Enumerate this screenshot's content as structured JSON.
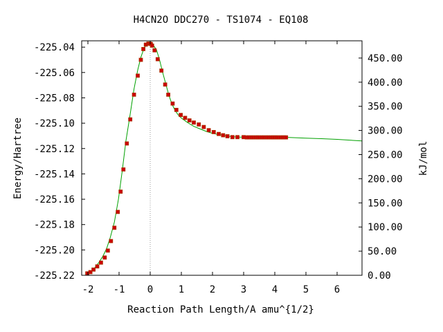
{
  "chart_data": {
    "type": "scatter",
    "title": "H4CN2O   DDC270 - TS1074 - EQ108",
    "xlabel": "Reaction Path Length/A amu^{1/2}",
    "ylabel": "Energy/Hartree",
    "y2label": "kJ/mol",
    "xlim": [
      -2.2,
      6.8
    ],
    "ylim": [
      -225.22,
      -225.035
    ],
    "y2lim": [
      0,
      485.7
    ],
    "xticks": [
      -2,
      -1,
      0,
      1,
      2,
      3,
      4,
      5,
      6
    ],
    "xtick_labels": [
      "-2",
      "-1",
      "0",
      "1",
      "2",
      "3",
      "4",
      "5",
      "6"
    ],
    "yticks": [
      -225.22,
      -225.2,
      -225.18,
      -225.16,
      -225.14,
      -225.12,
      -225.1,
      -225.08,
      -225.06,
      -225.04
    ],
    "ytick_labels": [
      "-225.22",
      "-225.20",
      "-225.18",
      "-225.16",
      "-225.14",
      "-225.12",
      "-225.10",
      "-225.08",
      "-225.06",
      "-225.04"
    ],
    "y2ticks": [
      0,
      50,
      100,
      150,
      200,
      250,
      300,
      350,
      400,
      450
    ],
    "y2tick_labels": [
      "0.00",
      "50.00",
      "100.00",
      "150.00",
      "200.00",
      "250.00",
      "300.00",
      "350.00",
      "400.00",
      "450.00"
    ],
    "ts_marker_x": 0,
    "grid": false,
    "colors": {
      "curve": "#00a000",
      "point_fill": "#cc0000",
      "point_edge": "#aa3300",
      "ts_line": "#999999",
      "frame": "#000000"
    },
    "series": [
      {
        "type": "line",
        "x": [
          -2.02,
          -1.9,
          -1.78,
          -1.65,
          -1.52,
          -1.4,
          -1.28,
          -1.15,
          -1.02,
          -0.9,
          -0.78,
          -0.65,
          -0.52,
          -0.4,
          -0.3,
          -0.2,
          -0.1,
          0.0,
          0.1,
          0.2,
          0.3,
          0.4,
          0.5,
          0.6,
          0.7,
          0.8,
          0.9,
          1.0,
          1.2,
          1.4,
          1.6,
          1.8,
          2.0,
          2.2,
          2.4,
          2.6,
          2.8,
          3.0,
          3.5,
          4.0,
          4.4,
          5.0,
          5.5,
          6.0,
          6.8
        ],
        "y": [
          -225.219,
          -225.2175,
          -225.214,
          -225.21,
          -225.205,
          -225.199,
          -225.19,
          -225.178,
          -225.16,
          -225.138,
          -225.114,
          -225.094,
          -225.073,
          -225.058,
          -225.048,
          -225.041,
          -225.0372,
          -225.037,
          -225.0385,
          -225.042,
          -225.05,
          -225.06,
          -225.069,
          -225.078,
          -225.085,
          -225.09,
          -225.0935,
          -225.096,
          -225.0995,
          -225.1025,
          -225.1045,
          -225.1065,
          -225.108,
          -225.109,
          -225.1098,
          -225.1105,
          -225.111,
          -225.111,
          -225.1112,
          -225.1112,
          -225.1112,
          -225.1118,
          -225.1122,
          -225.1128,
          -225.114
        ]
      },
      {
        "type": "scatter",
        "x": [
          -2.02,
          -1.92,
          -1.82,
          -1.7,
          -1.58,
          -1.46,
          -1.36,
          -1.26,
          -1.15,
          -1.04,
          -0.95,
          -0.86,
          -0.75,
          -0.64,
          -0.52,
          -0.4,
          -0.3,
          -0.22,
          -0.14,
          -0.06,
          -0.02,
          0.02,
          0.06,
          0.14,
          0.24,
          0.36,
          0.48,
          0.58,
          0.72,
          0.84,
          0.98,
          1.12,
          1.26,
          1.4,
          1.56,
          1.72,
          1.88,
          2.04,
          2.2,
          2.34,
          2.48,
          2.64,
          2.8,
          3.0,
          3.1,
          3.16,
          3.24,
          3.3,
          3.38,
          3.44,
          3.5,
          3.58,
          3.64,
          3.72,
          3.78,
          3.86,
          3.92,
          3.98,
          4.04,
          4.1,
          4.18,
          4.24,
          4.3,
          4.36
        ],
        "y": [
          -225.2185,
          -225.2175,
          -225.2155,
          -225.213,
          -225.21,
          -225.206,
          -225.2005,
          -225.193,
          -225.1825,
          -225.17,
          -225.154,
          -225.1365,
          -225.116,
          -225.097,
          -225.0775,
          -225.0625,
          -225.05,
          -225.0415,
          -225.038,
          -225.0372,
          -225.0372,
          -225.0375,
          -225.0388,
          -225.0425,
          -225.0495,
          -225.0585,
          -225.0695,
          -225.0775,
          -225.0845,
          -225.0895,
          -225.0935,
          -225.0958,
          -225.0978,
          -225.0995,
          -225.101,
          -225.103,
          -225.1055,
          -225.107,
          -225.1085,
          -225.1095,
          -225.1103,
          -225.111,
          -225.111,
          -225.111,
          -225.1112,
          -225.1112,
          -225.1112,
          -225.1112,
          -225.1112,
          -225.1112,
          -225.1112,
          -225.1112,
          -225.1112,
          -225.1112,
          -225.1112,
          -225.1112,
          -225.1112,
          -225.1112,
          -225.1112,
          -225.1112,
          -225.1112,
          -225.1112,
          -225.1112,
          -225.1112
        ]
      }
    ]
  }
}
